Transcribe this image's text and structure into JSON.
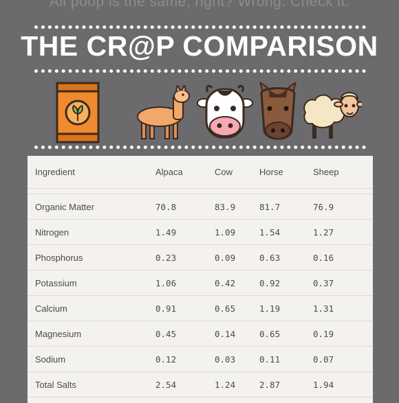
{
  "header": {
    "tagline": "All poop is the same, right? Wrong. Check it.",
    "title": "THE CR@P COMPARISON"
  },
  "icons": [
    "fertilizer-bag-icon",
    "alpaca-icon",
    "cow-icon",
    "horse-icon",
    "sheep-icon"
  ],
  "colors": {
    "background": "#6b6b6d",
    "table": "#f4f2ef",
    "text": "#4a4a4a"
  },
  "table": {
    "headers": [
      "Ingredient",
      "Alpaca",
      "Cow",
      "Horse",
      "Sheep"
    ],
    "rows": [
      [
        "Organic Matter",
        "70.8",
        "83.9",
        "81.7",
        "76.9"
      ],
      [
        "Nitrogen",
        "1.49",
        "1.09",
        "1.54",
        "1.27"
      ],
      [
        "Phosphorus",
        "0.23",
        "0.09",
        "0.63",
        "0.16"
      ],
      [
        "Potassium",
        "1.06",
        "0.42",
        "0.92",
        "0.37"
      ],
      [
        "Calcium",
        "0.91",
        "0.65",
        "1.19",
        "1.31"
      ],
      [
        "Magnesium",
        "0.45",
        "0.14",
        "0.65",
        "0.19"
      ],
      [
        "Sodium",
        "0.12",
        "0.03",
        "0.11",
        "0.07"
      ],
      [
        "Total Salts",
        "2.54",
        "1.24",
        "2.87",
        "1.94"
      ]
    ]
  }
}
